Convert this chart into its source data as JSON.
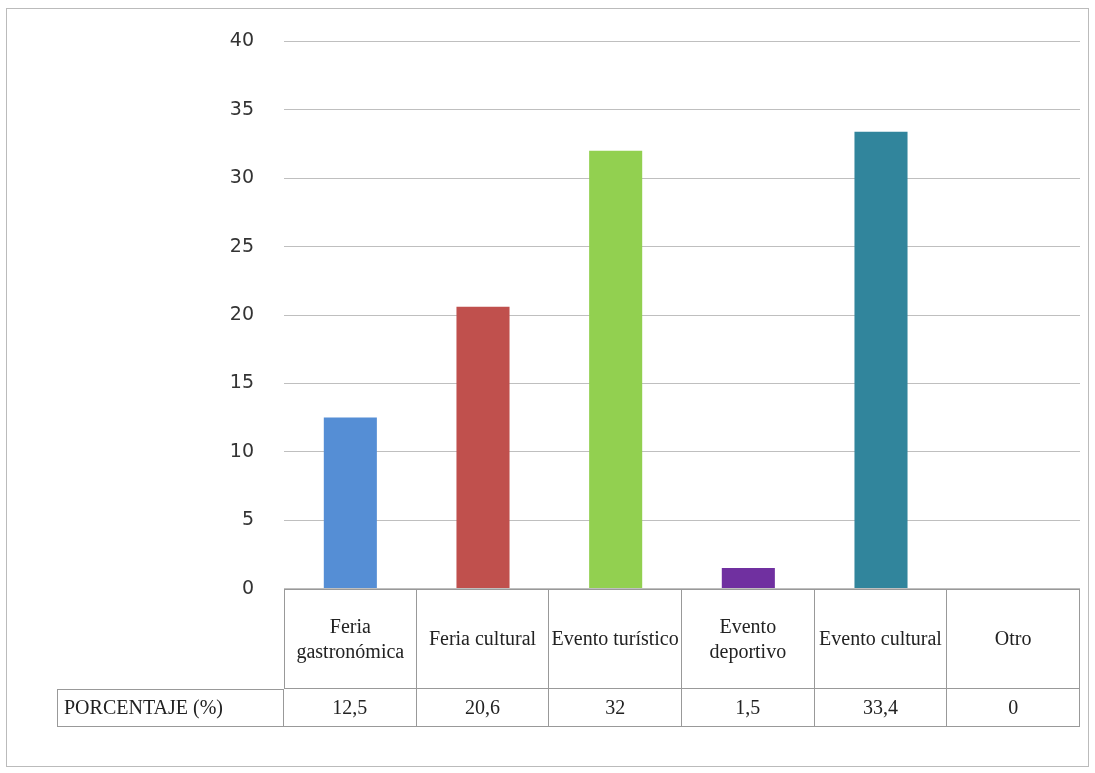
{
  "chart_data": {
    "type": "bar",
    "categories": [
      "Feria gastronómica",
      "Feria cultural",
      "Evento turístico",
      "Evento deportivo",
      "Evento cultural",
      "Otro"
    ],
    "series": [
      {
        "name": "PORCENTAJE (%)",
        "values": [
          12.5,
          20.6,
          32,
          1.5,
          33.4,
          0
        ],
        "colors": [
          "#558ed5",
          "#c0504d",
          "#92d050",
          "#7030a0",
          "#31859c",
          "#f79646"
        ]
      }
    ],
    "value_labels": [
      "12,5",
      "20,6",
      "32",
      "1,5",
      "33,4",
      "0"
    ],
    "ylim": [
      0,
      40
    ],
    "yticks": [
      0,
      5,
      10,
      15,
      20,
      25,
      30,
      35,
      40
    ],
    "grid": "y",
    "legend": false
  }
}
